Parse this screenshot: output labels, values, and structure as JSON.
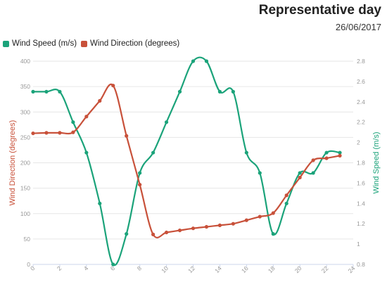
{
  "header": {
    "title": "Representative day",
    "date": "26/06/2017"
  },
  "colors": {
    "speed": "#1ba37a",
    "direction": "#c8513a"
  },
  "chart_data": {
    "type": "line",
    "x": [
      0,
      1,
      2,
      3,
      4,
      5,
      6,
      7,
      8,
      9,
      10,
      11,
      12,
      13,
      14,
      15,
      16,
      17,
      18,
      19,
      20,
      21,
      22,
      23
    ],
    "xlim": [
      0,
      24
    ],
    "x_ticks": [
      "0",
      "2",
      "4",
      "6",
      "8",
      "10",
      "12",
      "14",
      "16",
      "18",
      "20",
      "22",
      "24"
    ],
    "series": [
      {
        "name": "Wind Speed (m/s)",
        "axis": "right",
        "values": [
          2.5,
          2.5,
          2.5,
          2.2,
          1.9,
          1.4,
          0.8,
          1.1,
          1.7,
          1.9,
          2.2,
          2.5,
          2.8,
          2.8,
          2.5,
          2.5,
          1.9,
          1.7,
          1.1,
          1.4,
          1.7,
          1.7,
          1.9,
          1.9
        ]
      },
      {
        "name": "Wind Direction (degrees)",
        "axis": "left",
        "values": [
          258,
          259,
          259,
          260,
          291,
          322,
          352,
          253,
          157,
          59,
          63,
          67,
          71,
          74,
          77,
          80,
          87,
          94,
          101,
          136,
          171,
          205,
          209,
          214
        ]
      }
    ],
    "y_left": {
      "label": "Wind Direction (degrees)",
      "lim": [
        0,
        400
      ],
      "ticks": [
        "0",
        "50",
        "100",
        "150",
        "200",
        "250",
        "300",
        "350",
        "400"
      ]
    },
    "y_right": {
      "label": "Wind Speed (m/s)",
      "lim": [
        0.8,
        2.8
      ],
      "ticks": [
        "0.8",
        "1",
        "1.2",
        "1.4",
        "1.6",
        "1.8",
        "2",
        "2.2",
        "2.4",
        "2.6",
        "2.8"
      ]
    },
    "grid": true,
    "legend_position": "top-left"
  }
}
